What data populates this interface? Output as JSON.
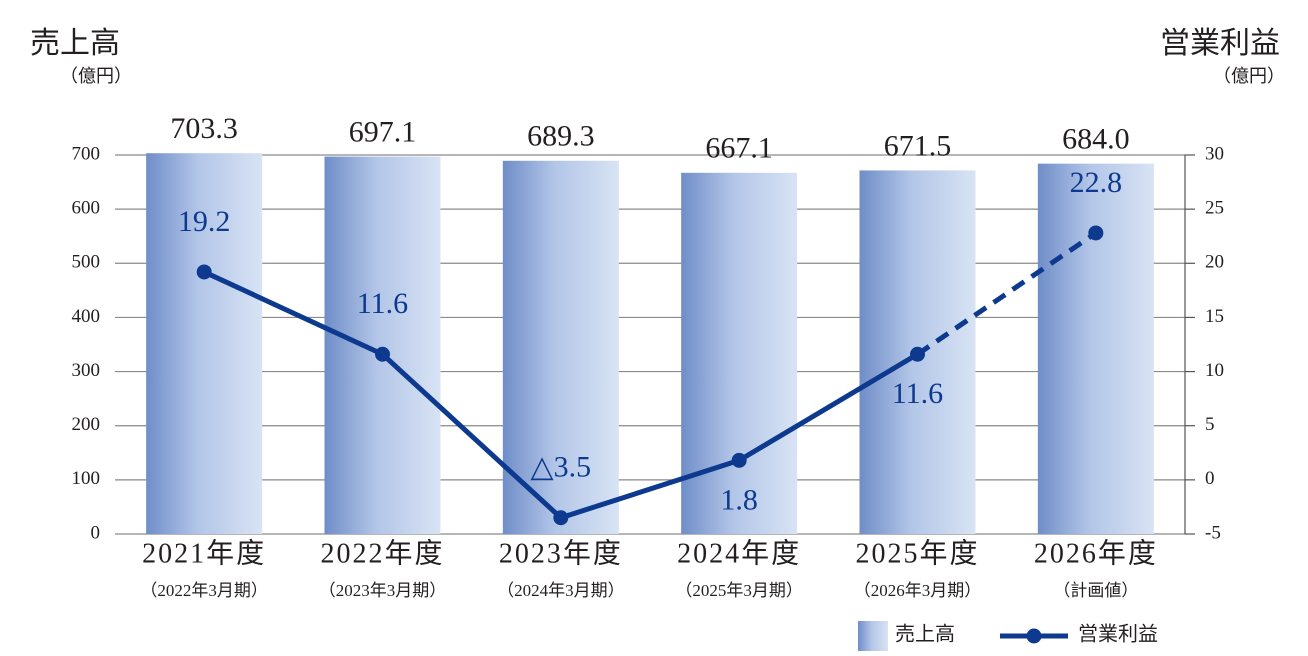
{
  "chart_data": {
    "type": "bar_line",
    "y_label": "売上高",
    "y_label_unit": "（億円）",
    "y2_label": "営業利益",
    "y2_label_unit": "（億円）",
    "categories": [
      "2021年度",
      "2022年度",
      "2023年度",
      "2024年度",
      "2025年度",
      "2026年度"
    ],
    "sub_categories": [
      "（2022年3月期）",
      "（2023年3月期）",
      "（2024年3月期）",
      "（2025年3月期）",
      "（2026年3月期）",
      "（計画値）"
    ],
    "series": [
      {
        "name": "売上高",
        "type": "bar",
        "color": "#7f9ad0",
        "values": [
          703.3,
          697.1,
          689.3,
          667.1,
          671.5,
          684.0
        ],
        "value_labels": [
          "703.3",
          "697.1",
          "689.3",
          "667.1",
          "671.5",
          "684.0"
        ]
      },
      {
        "name": "営業利益",
        "type": "line",
        "axis": "y2",
        "color": "#0d3a8e",
        "values": [
          19.2,
          11.6,
          -3.5,
          1.8,
          11.6,
          22.8
        ],
        "value_labels": [
          "19.2",
          "11.6",
          "△3.5",
          "1.8",
          "11.6",
          "22.8"
        ],
        "dashed_last_segment": true
      }
    ],
    "ylim": [
      0,
      700
    ],
    "yticks": [
      0,
      100,
      200,
      300,
      400,
      500,
      600,
      700
    ],
    "y2lim": [
      -5,
      30
    ],
    "y2ticks": [
      -5,
      0,
      5,
      10,
      15,
      20,
      25,
      30
    ],
    "grid": true,
    "legend": "bottom-right"
  }
}
